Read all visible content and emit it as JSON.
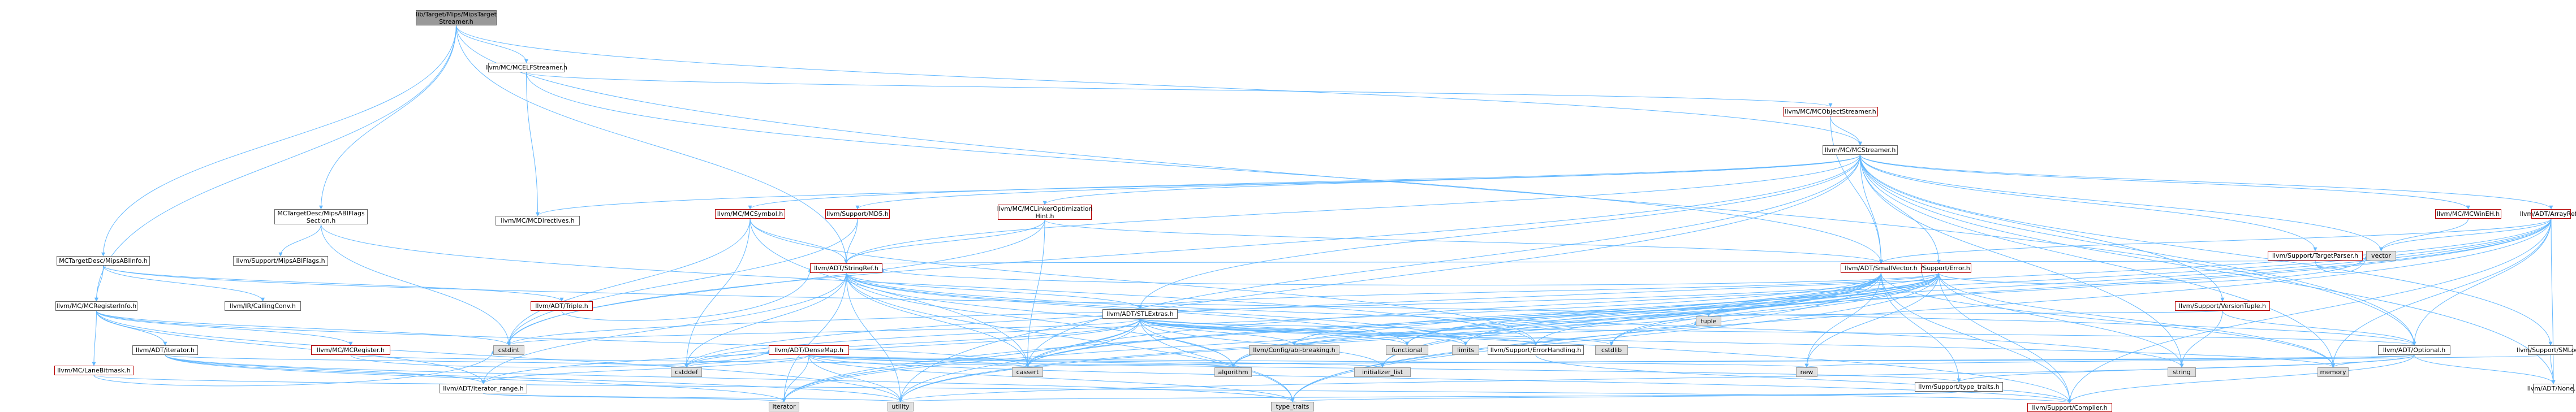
{
  "colors": {
    "edge": "#63b8ff",
    "red_border": "#b70000",
    "gray_fill": "#e0e0e0",
    "root_fill": "#999999"
  },
  "nodes": [
    {
      "id": "root",
      "label": "lib/Target/Mips/MipsTarget\nStreamer.h",
      "kind": "root"
    },
    {
      "id": "elfstreamer",
      "label": "llvm/MC/MCELFStreamer.h",
      "kind": "plain"
    },
    {
      "id": "objstreamer",
      "label": "llvm/MC/MCObjectStreamer.h",
      "kind": "red"
    },
    {
      "id": "mcstreamer",
      "label": "llvm/MC/MCStreamer.h",
      "kind": "plain"
    },
    {
      "id": "abiflags",
      "label": "MCTargetDesc/MipsABIFlags\nSection.h",
      "kind": "plain"
    },
    {
      "id": "abiinfo",
      "label": "MCTargetDesc/MipsABIInfo.h",
      "kind": "plain"
    },
    {
      "id": "mcdirectives",
      "label": "llvm/MC/MCDirectives.h",
      "kind": "plain"
    },
    {
      "id": "mcsymbol",
      "label": "llvm/MC/MCSymbol.h",
      "kind": "red"
    },
    {
      "id": "md5",
      "label": "llvm/Support/MD5.h",
      "kind": "red"
    },
    {
      "id": "linkeropt",
      "label": "llvm/MC/MCLinkerOptimization\nHint.h",
      "kind": "red"
    },
    {
      "id": "mipsabiflags",
      "label": "llvm/Support/MipsABIFlags.h",
      "kind": "plain"
    },
    {
      "id": "callingconv",
      "label": "llvm/IR/CallingConv.h",
      "kind": "plain"
    },
    {
      "id": "stringref",
      "label": "llvm/ADT/StringRef.h",
      "kind": "red"
    },
    {
      "id": "supporterror",
      "label": "llvm/Support/Error.h",
      "kind": "red"
    },
    {
      "id": "smallvector",
      "label": "llvm/ADT/SmallVector.h",
      "kind": "red"
    },
    {
      "id": "stlextras",
      "label": "llvm/ADT/STLExtras.h",
      "kind": "plain"
    },
    {
      "id": "triple",
      "label": "llvm/ADT/Triple.h",
      "kind": "red"
    },
    {
      "id": "mcreginfo",
      "label": "llvm/MC/MCRegisterInfo.h",
      "kind": "plain"
    },
    {
      "id": "targetparser",
      "label": "llvm/Support/TargetParser.h",
      "kind": "red"
    },
    {
      "id": "winehm",
      "label": "llvm/MC/MCWinEH.h",
      "kind": "red"
    },
    {
      "id": "arrayref",
      "label": "llvm/ADT/ArrayRef.h",
      "kind": "red"
    },
    {
      "id": "versiontuple",
      "label": "llvm/Support/VersionTuple.h",
      "kind": "red"
    },
    {
      "id": "smloc",
      "label": "llvm/Support/SMLoc.h",
      "kind": "plain"
    },
    {
      "id": "adtiterator",
      "label": "llvm/ADT/iterator.h",
      "kind": "plain"
    },
    {
      "id": "mcregister",
      "label": "llvm/MC/MCRegister.h",
      "kind": "red"
    },
    {
      "id": "densemap",
      "label": "llvm/ADT/DenseMap.h",
      "kind": "red"
    },
    {
      "id": "lanebitmask",
      "label": "llvm/MC/LaneBitmask.h",
      "kind": "red"
    },
    {
      "id": "iterrange",
      "label": "llvm/ADT/iterator_range.h",
      "kind": "plain"
    },
    {
      "id": "adtoptional",
      "label": "llvm/ADT/Optional.h",
      "kind": "plain"
    },
    {
      "id": "errorhandling",
      "label": "llvm/Support/ErrorHandling.h",
      "kind": "plain"
    },
    {
      "id": "typetraits_s",
      "label": "llvm/Support/type_traits.h",
      "kind": "plain"
    },
    {
      "id": "compiler",
      "label": "llvm/Support/Compiler.h",
      "kind": "red"
    },
    {
      "id": "adtnone",
      "label": "llvm/ADT/None.h",
      "kind": "plain"
    },
    {
      "id": "abi_breaking",
      "label": "llvm/Config/abi-breaking.h",
      "kind": "gray"
    },
    {
      "id": "functional",
      "label": "functional",
      "kind": "gray"
    },
    {
      "id": "limits",
      "label": "limits",
      "kind": "gray"
    },
    {
      "id": "cstdint",
      "label": "cstdint",
      "kind": "gray"
    },
    {
      "id": "cstddef",
      "label": "cstddef",
      "kind": "gray"
    },
    {
      "id": "cassert",
      "label": "cassert",
      "kind": "gray"
    },
    {
      "id": "algorithm",
      "label": "algorithm",
      "kind": "gray"
    },
    {
      "id": "initlist",
      "label": "initializer_list",
      "kind": "gray"
    },
    {
      "id": "cstdlib",
      "label": "cstdlib",
      "kind": "gray"
    },
    {
      "id": "tuple",
      "label": "tuple",
      "kind": "gray"
    },
    {
      "id": "new",
      "label": "new",
      "kind": "gray"
    },
    {
      "id": "string",
      "label": "string",
      "kind": "gray"
    },
    {
      "id": "memory",
      "label": "memory",
      "kind": "gray"
    },
    {
      "id": "vector",
      "label": "vector",
      "kind": "gray"
    },
    {
      "id": "iterator",
      "label": "iterator",
      "kind": "gray"
    },
    {
      "id": "utility",
      "label": "utility",
      "kind": "gray"
    },
    {
      "id": "typetraits",
      "label": "type_traits",
      "kind": "gray"
    }
  ],
  "edges": [
    [
      "root",
      "elfstreamer"
    ],
    [
      "root",
      "mcstreamer"
    ],
    [
      "root",
      "abiflags"
    ],
    [
      "root",
      "abiinfo"
    ],
    [
      "root",
      "stringref"
    ],
    [
      "root",
      "mcreginfo"
    ],
    [
      "root",
      "adtoptional"
    ],
    [
      "elfstreamer",
      "objstreamer"
    ],
    [
      "elfstreamer",
      "mcdirectives"
    ],
    [
      "elfstreamer",
      "smallvector"
    ],
    [
      "objstreamer",
      "mcstreamer"
    ],
    [
      "objstreamer",
      "smallvector"
    ],
    [
      "mcstreamer",
      "mcdirectives"
    ],
    [
      "mcstreamer",
      "mcsymbol"
    ],
    [
      "mcstreamer",
      "md5"
    ],
    [
      "mcstreamer",
      "linkeropt"
    ],
    [
      "mcstreamer",
      "stringref"
    ],
    [
      "mcstreamer",
      "supporterror"
    ],
    [
      "mcstreamer",
      "smallvector"
    ],
    [
      "mcstreamer",
      "stlextras"
    ],
    [
      "mcstreamer",
      "targetparser"
    ],
    [
      "mcstreamer",
      "winehm"
    ],
    [
      "mcstreamer",
      "arrayref"
    ],
    [
      "mcstreamer",
      "versiontuple"
    ],
    [
      "mcstreamer",
      "smloc"
    ],
    [
      "mcstreamer",
      "adtoptional"
    ],
    [
      "mcstreamer",
      "cassert"
    ],
    [
      "mcstreamer",
      "cstdint"
    ],
    [
      "mcstreamer",
      "memory"
    ],
    [
      "mcstreamer",
      "string"
    ],
    [
      "mcstreamer",
      "vector"
    ],
    [
      "mcstreamer",
      "utility"
    ],
    [
      "mcstreamer",
      "adtnone"
    ],
    [
      "abiflags",
      "mipsabiflags"
    ],
    [
      "abiflags",
      "errorhandling"
    ],
    [
      "abiflags",
      "cstdint"
    ],
    [
      "abiinfo",
      "callingconv"
    ],
    [
      "abiinfo",
      "triple"
    ],
    [
      "abiinfo",
      "mcreginfo"
    ],
    [
      "abiinfo",
      "adtoptional"
    ],
    [
      "mcsymbol",
      "stringref"
    ],
    [
      "mcsymbol",
      "errorhandling"
    ],
    [
      "mcsymbol",
      "cassert"
    ],
    [
      "mcsymbol",
      "cstddef"
    ],
    [
      "mcsymbol",
      "cstdint"
    ],
    [
      "md5",
      "stringref"
    ],
    [
      "md5",
      "cstdint"
    ],
    [
      "linkeropt",
      "stringref"
    ],
    [
      "linkeropt",
      "smallvector"
    ],
    [
      "linkeropt",
      "cassert"
    ],
    [
      "linkeropt",
      "cstdint"
    ],
    [
      "stringref",
      "stlextras"
    ],
    [
      "stringref",
      "compiler"
    ],
    [
      "stringref",
      "iterrange"
    ],
    [
      "stringref",
      "algorithm"
    ],
    [
      "stringref",
      "cassert"
    ],
    [
      "stringref",
      "cstddef"
    ],
    [
      "stringref",
      "cstring"
    ],
    [
      "stringref",
      "functional"
    ],
    [
      "stringref",
      "limits"
    ],
    [
      "stringref",
      "string"
    ],
    [
      "stringref",
      "typetraits"
    ],
    [
      "stringref",
      "utility"
    ],
    [
      "stringref",
      "iterator"
    ],
    [
      "supporterror",
      "abi_breaking"
    ],
    [
      "supporterror",
      "stringref"
    ],
    [
      "supporterror",
      "smallvector"
    ],
    [
      "supporterror",
      "stlextras"
    ],
    [
      "supporterror",
      "errorhandling"
    ],
    [
      "supporterror",
      "compiler"
    ],
    [
      "supporterror",
      "algorithm"
    ],
    [
      "supporterror",
      "cassert"
    ],
    [
      "supporterror",
      "cstdint"
    ],
    [
      "supporterror",
      "cstdlib"
    ],
    [
      "supporterror",
      "functional"
    ],
    [
      "supporterror",
      "memory"
    ],
    [
      "supporterror",
      "new"
    ],
    [
      "supporterror",
      "string"
    ],
    [
      "supporterror",
      "tuple"
    ],
    [
      "supporterror",
      "typetraits"
    ],
    [
      "supporterror",
      "utility"
    ],
    [
      "supporterror",
      "vector"
    ],
    [
      "smallvector",
      "compiler"
    ],
    [
      "smallvector",
      "typetraits_s"
    ],
    [
      "smallvector",
      "algorithm"
    ],
    [
      "smallvector",
      "cassert"
    ],
    [
      "smallvector",
      "cstddef"
    ],
    [
      "smallvector",
      "cstdlib"
    ],
    [
      "smallvector",
      "cstring"
    ],
    [
      "smallvector",
      "functional"
    ],
    [
      "smallvector",
      "initlist"
    ],
    [
      "smallvector",
      "iterator"
    ],
    [
      "smallvector",
      "limits"
    ],
    [
      "smallvector",
      "memory"
    ],
    [
      "smallvector",
      "new"
    ],
    [
      "smallvector",
      "typetraits"
    ],
    [
      "smallvector",
      "utility"
    ],
    [
      "stlextras",
      "abi_breaking"
    ],
    [
      "stlextras",
      "adtoptional"
    ],
    [
      "stlextras",
      "iterator"
    ],
    [
      "stlextras",
      "iterrange"
    ],
    [
      "stlextras",
      "errorhandling"
    ],
    [
      "stlextras",
      "algorithm"
    ],
    [
      "stlextras",
      "cassert"
    ],
    [
      "stlextras",
      "cstddef"
    ],
    [
      "stlextras",
      "cstdint"
    ],
    [
      "stlextras",
      "cstdlib"
    ],
    [
      "stlextras",
      "functional"
    ],
    [
      "stlextras",
      "initlist"
    ],
    [
      "stlextras",
      "limits"
    ],
    [
      "stlextras",
      "memory"
    ],
    [
      "stlextras",
      "tuple"
    ],
    [
      "stlextras",
      "typetraits"
    ],
    [
      "stlextras",
      "utility"
    ],
    [
      "stlextras",
      "iterator"
    ],
    [
      "triple",
      "stringref"
    ],
    [
      "mcreginfo",
      "adtiterator"
    ],
    [
      "mcreginfo",
      "iterrange"
    ],
    [
      "mcreginfo",
      "lanebitmask"
    ],
    [
      "mcreginfo",
      "mcregister"
    ],
    [
      "mcreginfo",
      "cassert"
    ],
    [
      "mcreginfo",
      "cstdint"
    ],
    [
      "mcreginfo",
      "utility"
    ],
    [
      "targetparser",
      "stringref"
    ],
    [
      "targetparser",
      "vector"
    ],
    [
      "winehm",
      "vector"
    ],
    [
      "arrayref",
      "smallvector"
    ],
    [
      "arrayref",
      "adtnone"
    ],
    [
      "arrayref",
      "compiler"
    ],
    [
      "arrayref",
      "algorithm"
    ],
    [
      "arrayref",
      "array"
    ],
    [
      "arrayref",
      "cassert"
    ],
    [
      "arrayref",
      "cstddef"
    ],
    [
      "arrayref",
      "initlist"
    ],
    [
      "arrayref",
      "iterator"
    ],
    [
      "arrayref",
      "memory"
    ],
    [
      "arrayref",
      "typetraits"
    ],
    [
      "arrayref",
      "vector"
    ],
    [
      "arrayref",
      "adtoptional"
    ],
    [
      "versiontuple",
      "adtoptional"
    ],
    [
      "versiontuple",
      "string"
    ],
    [
      "versiontuple",
      "tuple"
    ],
    [
      "smloc",
      "adtnone"
    ],
    [
      "smloc",
      "cassert"
    ],
    [
      "adtiterator",
      "iterrange"
    ],
    [
      "adtiterator",
      "cstddef"
    ],
    [
      "adtiterator",
      "iterator"
    ],
    [
      "adtiterator",
      "typetraits"
    ],
    [
      "adtiterator",
      "utility"
    ],
    [
      "mcregister",
      "densemap"
    ],
    [
      "mcregister",
      "cassert"
    ],
    [
      "densemap",
      "iterrange"
    ],
    [
      "densemap",
      "typetraits_s"
    ],
    [
      "densemap",
      "compiler"
    ],
    [
      "densemap",
      "algorithm"
    ],
    [
      "densemap",
      "cassert"
    ],
    [
      "densemap",
      "cstddef"
    ],
    [
      "densemap",
      "initlist"
    ],
    [
      "densemap",
      "iterator"
    ],
    [
      "densemap",
      "new"
    ],
    [
      "densemap",
      "typetraits"
    ],
    [
      "densemap",
      "utility"
    ],
    [
      "lanebitmask",
      "compiler"
    ],
    [
      "lanebitmask",
      "cstdint"
    ],
    [
      "iterrange",
      "iterator"
    ],
    [
      "iterrange",
      "utility"
    ],
    [
      "adtoptional",
      "adtnone"
    ],
    [
      "adtoptional",
      "compiler"
    ],
    [
      "adtoptional",
      "typetraits_s"
    ],
    [
      "adtoptional",
      "cassert"
    ],
    [
      "adtoptional",
      "memory"
    ],
    [
      "adtoptional",
      "new"
    ],
    [
      "adtoptional",
      "utility"
    ],
    [
      "errorhandling",
      "compiler"
    ],
    [
      "typetraits_s",
      "typetraits"
    ],
    [
      "typetraits_s",
      "utility"
    ]
  ]
}
